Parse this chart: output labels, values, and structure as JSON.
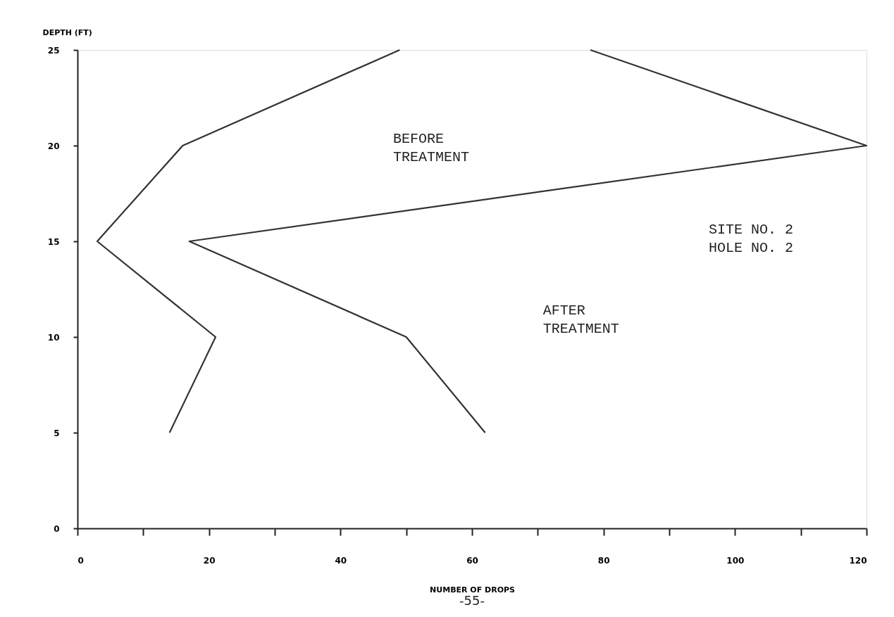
{
  "chart_data": {
    "type": "line",
    "xlabel": "NUMBER OF DROPS",
    "ylabel": "DEPTH (FT)",
    "series": [
      {
        "color": "#333333",
        "x": [
          14,
          21,
          3,
          16,
          49
        ],
        "values": [
          5,
          10,
          15,
          20,
          25
        ]
      },
      {
        "color": "#333333",
        "x": [
          62,
          50,
          17,
          120,
          78
        ],
        "values": [
          5,
          10,
          15,
          20,
          25
        ]
      }
    ],
    "xlim": [
      0,
      120
    ],
    "ylim": [
      0,
      25
    ],
    "xticks": [
      0,
      {
        "value": 10,
        "label": null
      },
      20,
      {
        "value": 30,
        "label": null
      },
      40,
      {
        "value": 50,
        "label": null
      },
      60,
      {
        "value": 70,
        "label": null
      },
      80,
      {
        "value": 90,
        "label": null
      },
      100,
      {
        "value": 110,
        "label": null
      },
      120
    ],
    "yticks": [
      0,
      5,
      10,
      15,
      20,
      25
    ],
    "grid": false,
    "marker": "none",
    "line_style": "solid",
    "annotations": [
      "BEFORE\nTREATMENT",
      "SITE NO. 2\nHOLE NO. 2",
      "AFTER\nTREATMENT",
      "-55-"
    ]
  }
}
